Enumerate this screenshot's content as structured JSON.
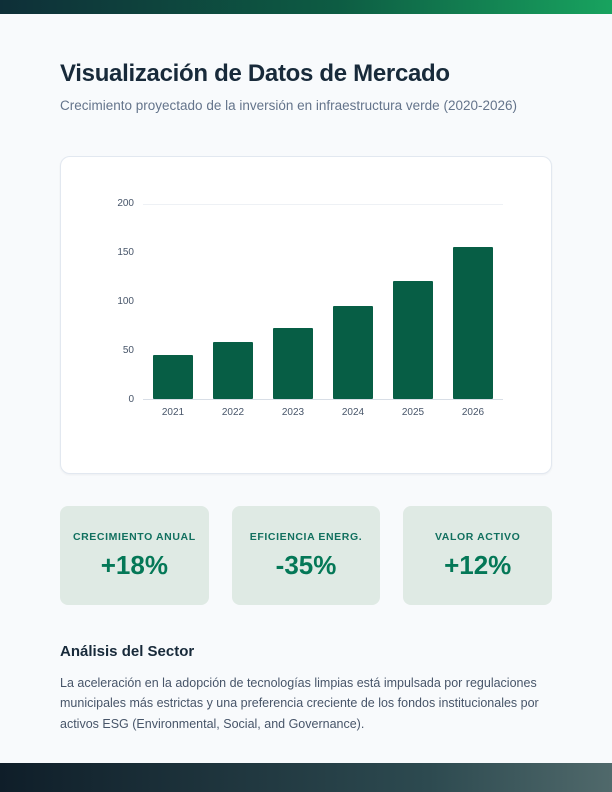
{
  "page": {
    "title": "Visualización de Datos de Mercado",
    "subtitle": "Crecimiento proyectado de la inversión en infraestructura verde (2020-2026)"
  },
  "chart_data": {
    "type": "bar",
    "categories": [
      "2021",
      "2022",
      "2023",
      "2024",
      "2025",
      "2026"
    ],
    "values": [
      45,
      58,
      72,
      95,
      120,
      155
    ],
    "title": "",
    "xlabel": "",
    "ylabel": "",
    "ylim": [
      0,
      200
    ],
    "yticks": [
      0,
      50,
      100,
      150,
      200
    ],
    "bar_color": "#075e45",
    "grid": "minimal",
    "legend": "none"
  },
  "stats": {
    "items": [
      {
        "label": "CRECIMIENTO ANUAL",
        "value": "+18%"
      },
      {
        "label": "EFICIENCIA ENERG.",
        "value": "-35%"
      },
      {
        "label": "VALOR ACTIVO",
        "value": "+12%"
      }
    ]
  },
  "analysis": {
    "heading": "Análisis del Sector",
    "body": "La aceleración en la adopción de tecnologías limpias está impulsada por regulaciones municipales más estrictas y una preferencia creciente de los fondos institucionales por activos ESG (Environmental, Social, and Governance)."
  },
  "colors": {
    "bar_green": "#075e45",
    "stat_card_bg": "#dfeae4",
    "stat_label_teal": "#11705f",
    "stat_value_green": "#047857",
    "top_bar_gradient": [
      "#0e2f38",
      "#18a35f"
    ],
    "bottom_bar_gradient": [
      "#0f1e29",
      "#50696b"
    ],
    "page_bg": "#f8fafc",
    "heading_navy": "#182a3a"
  }
}
